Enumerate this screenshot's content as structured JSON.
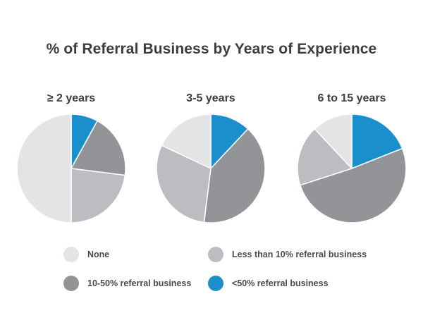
{
  "colors": {
    "none": "#e3e4e6",
    "less_than_10": "#bcbdc0",
    "ten_to_50": "#939497",
    "over_50": "#1b8fcc",
    "text": "#3d3d3d"
  },
  "legend": [
    {
      "key": "none",
      "label": "None",
      "color": "#e3e4e6"
    },
    {
      "key": "less_than_10",
      "label": "Less than 10% referral business",
      "color": "#bcbdc0"
    },
    {
      "key": "ten_to_50",
      "label": "10-50% referral business",
      "color": "#939497"
    },
    {
      "key": "over_50",
      "label": "<50% referral business",
      "color": "#1b8fcc"
    }
  ],
  "chart_data": {
    "type": "pie",
    "title": "% of Referral Business by Years of Experience",
    "charts": [
      {
        "title": "≥ 2 years",
        "slices": [
          {
            "label": "<50% referral business",
            "value": 8,
            "color": "#1b8fcc"
          },
          {
            "label": "10-50% referral business",
            "value": 19,
            "color": "#939497"
          },
          {
            "label": "Less than 10% referral business",
            "value": 23,
            "color": "#bcbdc0"
          },
          {
            "label": "None",
            "value": 50,
            "color": "#e3e4e6"
          }
        ]
      },
      {
        "title": "3-5 years",
        "slices": [
          {
            "label": "<50% referral business",
            "value": 12,
            "color": "#1b8fcc"
          },
          {
            "label": "10-50% referral business",
            "value": 40,
            "color": "#939497"
          },
          {
            "label": "Less than 10% referral business",
            "value": 30,
            "color": "#bcbdc0"
          },
          {
            "label": "None",
            "value": 18,
            "color": "#e3e4e6"
          }
        ]
      },
      {
        "title": "6 to 15 years",
        "slices": [
          {
            "label": "<50% referral business",
            "value": 19,
            "color": "#1b8fcc"
          },
          {
            "label": "10-50% referral business",
            "value": 51,
            "color": "#939497"
          },
          {
            "label": "Less than 10% referral business",
            "value": 18,
            "color": "#bcbdc0"
          },
          {
            "label": "None",
            "value": 12,
            "color": "#e3e4e6"
          }
        ]
      }
    ],
    "legend_position": "bottom"
  }
}
